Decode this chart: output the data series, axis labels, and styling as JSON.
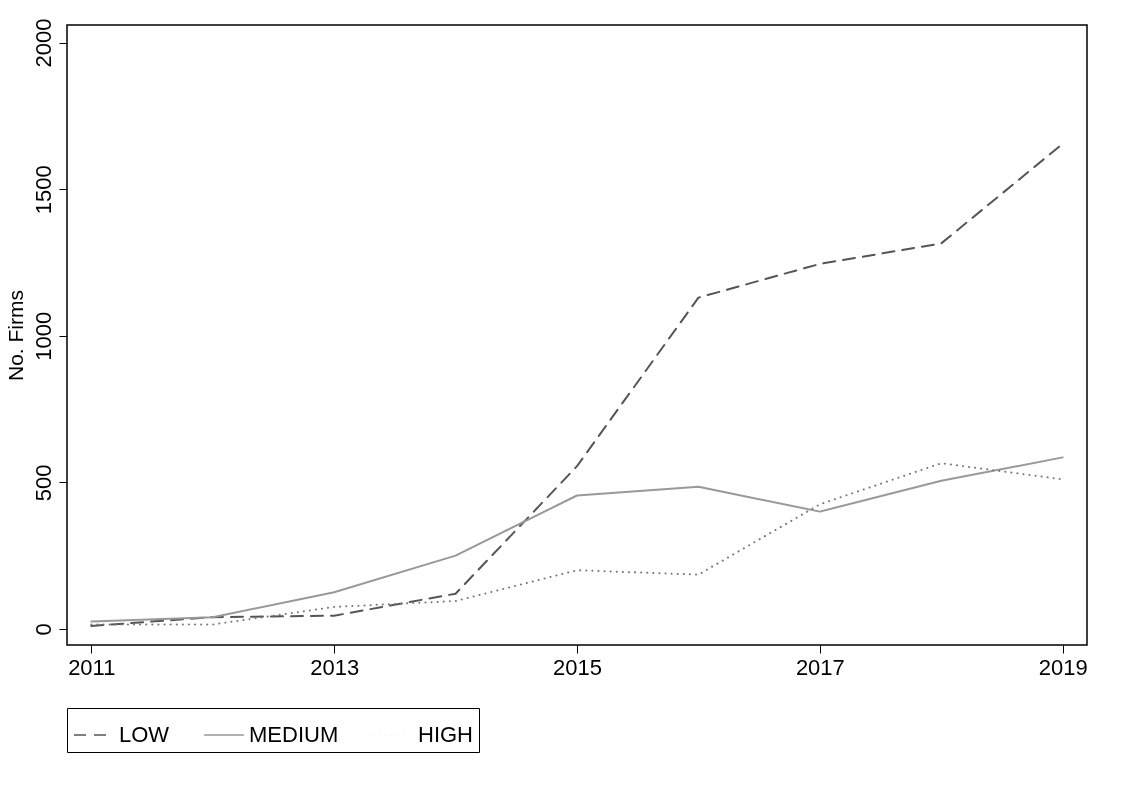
{
  "chart_data": {
    "type": "line",
    "ylabel": "No. Firms",
    "x": [
      2011,
      2012,
      2013,
      2014,
      2015,
      2016,
      2017,
      2018,
      2019
    ],
    "series": [
      {
        "name": "LOW",
        "color": "#555555",
        "line_style": "dashed",
        "values": [
          10,
          40,
          45,
          120,
          555,
          1130,
          1245,
          1315,
          1655
        ]
      },
      {
        "name": "MEDIUM",
        "color": "#999999",
        "line_style": "solid",
        "values": [
          25,
          40,
          125,
          250,
          455,
          485,
          400,
          505,
          585
        ]
      },
      {
        "name": "HIGH",
        "color": "#777777",
        "line_style": "dotted",
        "values": [
          15,
          15,
          75,
          95,
          200,
          185,
          425,
          565,
          510
        ]
      }
    ],
    "xlim": [
      2010.8,
      2019.2
    ],
    "xticks": [
      2011,
      2013,
      2015,
      2017,
      2019
    ],
    "ylim": [
      -55,
      2060
    ],
    "yticks": [
      0,
      500,
      1000,
      1500,
      2000
    ],
    "grid": false,
    "legend": "bottom",
    "marker": "none"
  }
}
